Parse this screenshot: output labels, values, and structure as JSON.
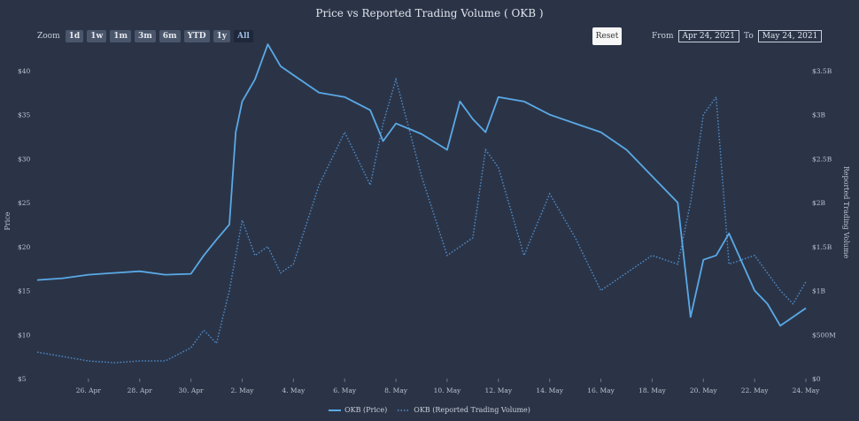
{
  "header": {
    "title": "Price vs Reported Trading Volume ( OKB )"
  },
  "zoom": {
    "label": "Zoom",
    "buttons": [
      "1d",
      "1w",
      "1m",
      "3m",
      "6m",
      "YTD",
      "1y",
      "All"
    ],
    "active": "All"
  },
  "reset_label": "Reset",
  "range": {
    "from_label": "From",
    "from_value": "Apr 24, 2021",
    "to_label": "To",
    "to_value": "May 24, 2021"
  },
  "colors": {
    "background": "#2b3447",
    "price": "#5aa9e6",
    "volume": "#4f8fcf"
  },
  "chart_data": {
    "type": "line",
    "title": "Price vs Reported Trading Volume ( OKB )",
    "x_range": [
      "2021-04-24",
      "2021-05-24"
    ],
    "x_ticks": [
      "26. Apr",
      "28. Apr",
      "30. Apr",
      "2. May",
      "4. May",
      "6. May",
      "8. May",
      "10. May",
      "12. May",
      "14. May",
      "16. May",
      "18. May",
      "20. May",
      "22. May",
      "24. May"
    ],
    "y_left": {
      "label": "Price",
      "ylim": [
        5,
        42
      ],
      "ticks": [
        5,
        10,
        15,
        20,
        25,
        30,
        35,
        40
      ],
      "tick_labels": [
        "$5",
        "$10",
        "$15",
        "$20",
        "$25",
        "$30",
        "$35",
        "$40"
      ]
    },
    "y_right": {
      "label": "Reported Trading Volume",
      "ylim": [
        0,
        3.7
      ],
      "ticks": [
        0,
        0.5,
        1,
        1.5,
        2,
        2.5,
        3,
        3.5
      ],
      "tick_labels": [
        "$0",
        "$500M",
        "$1B",
        "$1.5B",
        "$2B",
        "$2.5B",
        "$3B",
        "$3.5B"
      ]
    },
    "grid": false,
    "legend_position": "bottom-center",
    "series": [
      {
        "name": "OKB (Price)",
        "axis": "left",
        "style": "solid",
        "x": [
          "2021-04-24",
          "2021-04-25",
          "2021-04-26",
          "2021-04-27",
          "2021-04-28",
          "2021-04-29",
          "2021-04-30",
          "2021-04-30T12",
          "2021-05-01",
          "2021-05-01T12",
          "2021-05-01T18",
          "2021-05-02",
          "2021-05-02T12",
          "2021-05-03",
          "2021-05-03T12",
          "2021-05-04",
          "2021-05-05",
          "2021-05-06",
          "2021-05-07",
          "2021-05-07T12",
          "2021-05-08",
          "2021-05-09",
          "2021-05-10",
          "2021-05-10T12",
          "2021-05-11",
          "2021-05-11T12",
          "2021-05-12",
          "2021-05-13",
          "2021-05-14",
          "2021-05-15",
          "2021-05-16",
          "2021-05-17",
          "2021-05-18",
          "2021-05-19",
          "2021-05-19T12",
          "2021-05-20",
          "2021-05-20T12",
          "2021-05-21",
          "2021-05-22",
          "2021-05-22T12",
          "2021-05-23",
          "2021-05-24"
        ],
        "values": [
          16.2,
          16.4,
          16.8,
          17.0,
          17.2,
          16.8,
          16.9,
          19.0,
          20.8,
          22.5,
          33.0,
          36.5,
          39.0,
          43.0,
          40.5,
          39.5,
          37.5,
          37.0,
          35.5,
          32.0,
          34.0,
          32.8,
          31.0,
          36.5,
          34.5,
          33.0,
          37.0,
          36.5,
          35.0,
          34.0,
          33.0,
          31.0,
          28.0,
          25.0,
          12.0,
          18.5,
          19.0,
          21.5,
          15.0,
          13.5,
          11.0,
          13.0
        ]
      },
      {
        "name": "OKB (Reported Trading Volume)",
        "axis": "right",
        "style": "dotted",
        "x": [
          "2021-04-24",
          "2021-04-25",
          "2021-04-26",
          "2021-04-27",
          "2021-04-28",
          "2021-04-29",
          "2021-04-30",
          "2021-04-30T12",
          "2021-05-01",
          "2021-05-01T12",
          "2021-05-02",
          "2021-05-02T12",
          "2021-05-03",
          "2021-05-03T12",
          "2021-05-04",
          "2021-05-05",
          "2021-05-06",
          "2021-05-07",
          "2021-05-07T12",
          "2021-05-08",
          "2021-05-09",
          "2021-05-10",
          "2021-05-11",
          "2021-05-11T12",
          "2021-05-12",
          "2021-05-13",
          "2021-05-14",
          "2021-05-15",
          "2021-05-16",
          "2021-05-17",
          "2021-05-18",
          "2021-05-19",
          "2021-05-19T12",
          "2021-05-20",
          "2021-05-20T12",
          "2021-05-21",
          "2021-05-22",
          "2021-05-23",
          "2021-05-23T12",
          "2021-05-24"
        ],
        "values": [
          0.3,
          0.25,
          0.2,
          0.18,
          0.2,
          0.2,
          0.35,
          0.55,
          0.4,
          1.0,
          1.8,
          1.4,
          1.5,
          1.2,
          1.3,
          2.2,
          2.8,
          2.2,
          2.9,
          3.4,
          2.3,
          1.4,
          1.6,
          2.6,
          2.4,
          1.4,
          2.1,
          1.6,
          1.0,
          1.2,
          1.4,
          1.3,
          2.0,
          3.0,
          3.2,
          1.3,
          1.4,
          1.0,
          0.85,
          1.1
        ]
      }
    ]
  },
  "legend": {
    "price": "OKB (Price)",
    "volume": "OKB (Reported Trading Volume)"
  }
}
